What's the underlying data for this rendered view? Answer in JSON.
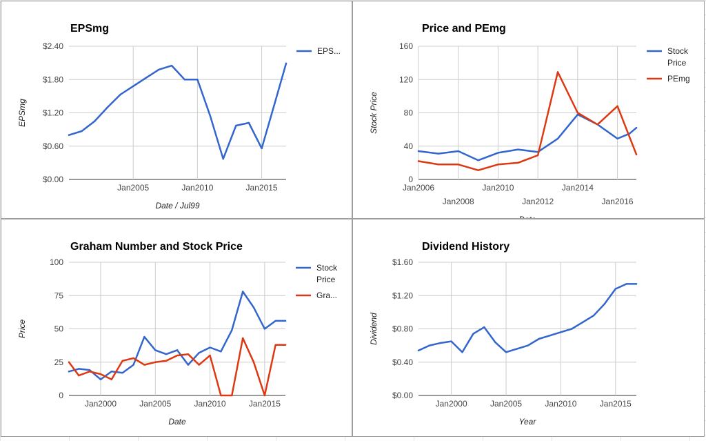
{
  "chart_data": [
    {
      "type": "line",
      "title": "EPSmg",
      "xlabel": "Date / Jul99",
      "ylabel": "EPSmg",
      "ylim": [
        0,
        2.4
      ],
      "xlim": [
        2000.0,
        2016.9
      ],
      "yticks": [
        "$0.00",
        "$0.60",
        "$1.20",
        "$1.80",
        "$2.40"
      ],
      "ytick_values": [
        0,
        0.6,
        1.2,
        1.8,
        2.4
      ],
      "xticks": [
        "Jan2005",
        "Jan2010",
        "Jan2015"
      ],
      "xtick_values": [
        2005,
        2010,
        2015
      ],
      "legend": "right",
      "grid": true,
      "series": [
        {
          "name": "EPS...",
          "color": "#3366cc",
          "x": [
            2000.0,
            2001.0,
            2002.0,
            2003.0,
            2004.0,
            2005.0,
            2006.0,
            2007.0,
            2008.0,
            2009.0,
            2010.0,
            2011.0,
            2012.0,
            2013.0,
            2014.0,
            2015.0,
            2016.0,
            2016.9
          ],
          "y": [
            0.8,
            0.87,
            1.05,
            1.3,
            1.53,
            1.68,
            1.83,
            1.98,
            2.05,
            1.8,
            1.8,
            1.14,
            0.37,
            0.97,
            1.02,
            0.56,
            1.36,
            2.09
          ]
        }
      ]
    },
    {
      "type": "line",
      "title": "Price and PEmg",
      "xlabel": "Date",
      "ylabel": "Stock Price",
      "ylim": [
        0,
        160
      ],
      "xlim": [
        2006.0,
        2016.95
      ],
      "yticks": [
        "0",
        "40",
        "80",
        "120",
        "160"
      ],
      "ytick_values": [
        0,
        40,
        80,
        120,
        160
      ],
      "xticks": [
        "Jan2006",
        "Jan2008",
        "Jan2010",
        "Jan2012",
        "Jan2014",
        "Jan2016"
      ],
      "xtick_values": [
        2006,
        2008,
        2010,
        2012,
        2014,
        2016
      ],
      "legend": "right",
      "grid": true,
      "series": [
        {
          "name": "Stock Price",
          "color": "#3366cc",
          "x": [
            2006.0,
            2007.0,
            2008.0,
            2009.0,
            2010.0,
            2011.0,
            2012.0,
            2013.0,
            2014.0,
            2015.0,
            2016.0,
            2016.6,
            2016.95
          ],
          "y": [
            34,
            31,
            34,
            23,
            32,
            36,
            33,
            49,
            78,
            66,
            49,
            55,
            62
          ]
        },
        {
          "name": "PEmg",
          "color": "#dc3912",
          "x": [
            2006.0,
            2007.0,
            2008.0,
            2009.0,
            2010.0,
            2011.0,
            2012.0,
            2013.0,
            2014.0,
            2015.0,
            2016.0,
            2016.95
          ],
          "y": [
            22,
            18,
            18,
            11,
            18,
            20,
            29,
            129,
            80,
            66,
            88,
            30
          ]
        }
      ]
    },
    {
      "type": "line",
      "title": "Graham Number and Stock Price",
      "xlabel": "Date",
      "ylabel": "Price",
      "ylim": [
        0,
        100
      ],
      "xlim": [
        1997.1,
        2016.9
      ],
      "yticks": [
        "0",
        "25",
        "50",
        "75",
        "100"
      ],
      "ytick_values": [
        0,
        25,
        50,
        75,
        100
      ],
      "xticks": [
        "Jan2000",
        "Jan2005",
        "Jan2010",
        "Jan2015"
      ],
      "xtick_values": [
        2000,
        2005,
        2010,
        2015
      ],
      "legend": "right",
      "grid": true,
      "series": [
        {
          "name": "Stock Price",
          "color": "#3366cc",
          "x": [
            1997.1,
            1998.0,
            1999.0,
            2000.0,
            2001.0,
            2002.0,
            2003.0,
            2004.0,
            2005.0,
            2006.0,
            2007.0,
            2008.0,
            2009.0,
            2010.0,
            2011.0,
            2012.0,
            2013.0,
            2014.0,
            2015.0,
            2016.0,
            2016.9
          ],
          "y": [
            18,
            20,
            19,
            12,
            18,
            17,
            23,
            44,
            34,
            31,
            34,
            23,
            32,
            36,
            33,
            49,
            78,
            66,
            50,
            56,
            56
          ]
        },
        {
          "name": "Gra...",
          "color": "#dc3912",
          "x": [
            1997.1,
            1998.0,
            1999.0,
            2000.0,
            2001.0,
            2002.0,
            2003.0,
            2004.0,
            2005.0,
            2006.0,
            2007.0,
            2008.0,
            2009.0,
            2010.0,
            2011.0,
            2012.0,
            2013.0,
            2014.0,
            2015.0,
            2016.0,
            2016.9
          ],
          "y": [
            25,
            15,
            18,
            16,
            12,
            26,
            28,
            23,
            25,
            26,
            30,
            31,
            23,
            30,
            0,
            0,
            43,
            25,
            0,
            38,
            38
          ]
        }
      ]
    },
    {
      "type": "line",
      "title": "Dividend History",
      "xlabel": "Year",
      "ylabel": "Dividend",
      "ylim": [
        0,
        1.6
      ],
      "xlim": [
        1997.0,
        2016.9
      ],
      "yticks": [
        "$0.00",
        "$0.40",
        "$0.80",
        "$1.20",
        "$1.60"
      ],
      "ytick_values": [
        0,
        0.4,
        0.8,
        1.2,
        1.6
      ],
      "xticks": [
        "Jan2000",
        "Jan2005",
        "Jan2010",
        "Jan2015"
      ],
      "xtick_values": [
        2000,
        2005,
        2010,
        2015
      ],
      "legend": "none",
      "grid": true,
      "series": [
        {
          "name": "",
          "color": "#3366cc",
          "x": [
            1997.0,
            1998.0,
            1999.0,
            2000.0,
            2001.0,
            2002.0,
            2003.0,
            2004.0,
            2005.0,
            2006.0,
            2007.0,
            2008.0,
            2009.0,
            2010.0,
            2011.0,
            2012.0,
            2013.0,
            2014.0,
            2015.0,
            2016.0,
            2016.9
          ],
          "y": [
            0.54,
            0.6,
            0.63,
            0.65,
            0.52,
            0.74,
            0.82,
            0.64,
            0.52,
            0.56,
            0.6,
            0.68,
            0.72,
            0.76,
            0.8,
            0.88,
            0.96,
            1.1,
            1.28,
            1.34,
            1.34
          ]
        }
      ]
    }
  ]
}
